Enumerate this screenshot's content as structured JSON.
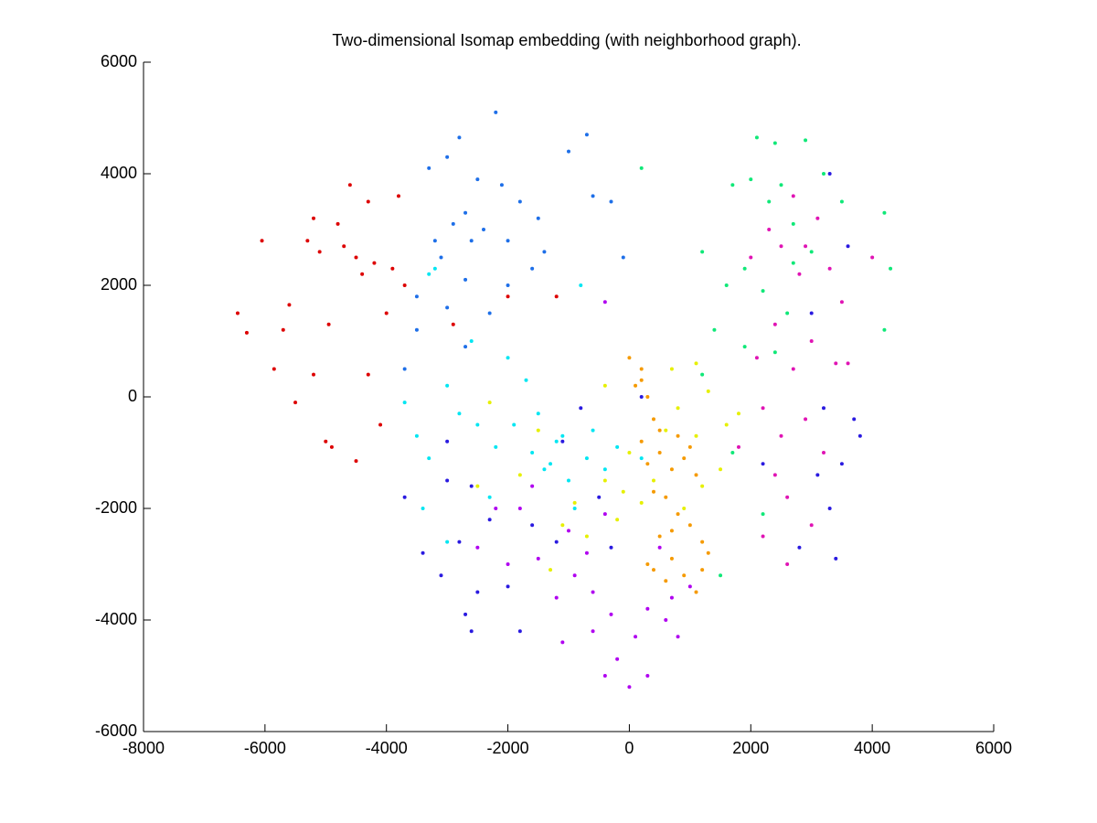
{
  "chart_data": {
    "type": "scatter",
    "title": "Two-dimensional Isomap embedding (with neighborhood graph).",
    "xlim": [
      -8000,
      6000
    ],
    "xticks": [
      -8000,
      -6000,
      -4000,
      -2000,
      0,
      2000,
      4000,
      6000
    ],
    "ylim": [
      -6000,
      6000
    ],
    "yticks": [
      -6000,
      -4000,
      -2000,
      0,
      2000,
      4000,
      6000
    ],
    "series": [
      {
        "color": "#dd0000",
        "x": [
          -6450,
          -6300,
          -6050,
          -5850,
          -5700,
          -5600,
          -5500,
          -5300,
          -5200,
          -5100,
          -5000,
          -4900,
          -4950,
          -4800,
          -4700,
          -4600,
          -4500,
          -4400,
          -4300,
          -4200,
          -4100,
          -4000,
          -3900,
          -3800,
          -4300,
          -5200,
          -4500,
          -3700,
          -2000,
          -2900,
          -1200
        ],
        "y": [
          1500,
          1150,
          2800,
          500,
          1200,
          1650,
          -100,
          2800,
          3200,
          2600,
          -800,
          -900,
          1300,
          3100,
          2700,
          3800,
          2500,
          2200,
          3500,
          2400,
          -500,
          1500,
          2300,
          3600,
          400,
          400,
          -1150,
          2000,
          1800,
          1300,
          1800
        ]
      },
      {
        "color": "#1e6fe8",
        "x": [
          -3300,
          -3000,
          -2800,
          -2200,
          -2500,
          -2700,
          -2900,
          -2600,
          -3100,
          -3500,
          -2400,
          -2000,
          -1800,
          -1500,
          -1000,
          -700,
          -600,
          -300,
          -1400,
          -2000,
          -3500,
          -3000,
          -3700,
          -2700,
          -2300,
          -1600,
          -100,
          -2100,
          -2700,
          -3200
        ],
        "y": [
          4100,
          4300,
          4650,
          5100,
          3900,
          3300,
          3100,
          2800,
          2500,
          1800,
          3000,
          2800,
          3500,
          3200,
          4400,
          4700,
          3600,
          3500,
          2600,
          2000,
          1200,
          1600,
          500,
          2100,
          1500,
          2300,
          2500,
          3800,
          900,
          2800
        ]
      },
      {
        "color": "#00e6f2",
        "x": [
          -3300,
          -3200,
          -3700,
          -3500,
          -3300,
          -3000,
          -2800,
          -2500,
          -2200,
          -1900,
          -1600,
          -1300,
          -1000,
          -700,
          -400,
          -200,
          -1700,
          -1500,
          -1200,
          -2600,
          -2000,
          -1100,
          -900,
          -800,
          -2300,
          -3400,
          -1400,
          -600,
          200,
          -3000
        ],
        "y": [
          2200,
          2300,
          -100,
          -700,
          -1100,
          200,
          -300,
          -500,
          -900,
          -500,
          -1000,
          -1200,
          -1500,
          -1100,
          -1300,
          -900,
          300,
          -300,
          -800,
          1000,
          700,
          -700,
          -2000,
          2000,
          -1800,
          -2000,
          -1300,
          -600,
          -1100,
          -2600
        ]
      },
      {
        "color": "#2a1ae0",
        "x": [
          -3700,
          -3400,
          -3100,
          -2800,
          -2700,
          -2500,
          -2600,
          -1800,
          -2000,
          -1600,
          -1200,
          -3000,
          -2600,
          -2300,
          -1100,
          -800,
          -500,
          3100,
          3300,
          3500,
          3700,
          3200,
          2800,
          3400,
          3000,
          3600,
          3300,
          2200,
          -3000,
          3800,
          -300,
          200
        ],
        "y": [
          -1800,
          -2800,
          -3200,
          -2600,
          -3900,
          -3500,
          -4200,
          -4200,
          -3400,
          -2300,
          -2600,
          -800,
          -1600,
          -2200,
          -800,
          -200,
          -1800,
          -1400,
          -2000,
          -1200,
          -400,
          -200,
          -2700,
          -2900,
          1500,
          2700,
          4000,
          -1200,
          -1500,
          -700,
          -2700,
          0
        ]
      },
      {
        "color": "#e014b4",
        "x": [
          2300,
          2500,
          2800,
          3100,
          2400,
          2700,
          3000,
          3400,
          2200,
          2500,
          2900,
          3200,
          2600,
          3000,
          3500,
          2000,
          2900,
          2700,
          2200,
          1800,
          3300,
          2100,
          4000,
          3600,
          2600,
          2400
        ],
        "y": [
          3000,
          2700,
          2200,
          3200,
          1300,
          500,
          1000,
          600,
          -200,
          -700,
          -400,
          -1000,
          -1800,
          -2300,
          1700,
          2500,
          2700,
          3600,
          -2500,
          -900,
          2300,
          700,
          2500,
          600,
          -3000,
          -1400
        ]
      },
      {
        "color": "#10e878",
        "x": [
          2100,
          2400,
          2900,
          1700,
          2000,
          2300,
          2700,
          3000,
          1900,
          2200,
          2600,
          1600,
          1400,
          1900,
          2400,
          3200,
          4200,
          4300,
          4200,
          1200,
          2500,
          1700,
          1500,
          2200,
          200,
          3500,
          2700,
          1200
        ],
        "y": [
          4650,
          4550,
          4600,
          3800,
          3900,
          3500,
          3100,
          2600,
          2300,
          1900,
          1500,
          2000,
          1200,
          900,
          800,
          4000,
          3300,
          2300,
          1200,
          2600,
          3800,
          -1000,
          -3200,
          -2100,
          4100,
          3500,
          2400,
          400
        ]
      },
      {
        "color": "#b000f0",
        "x": [
          -400,
          -200,
          0,
          100,
          300,
          -300,
          -600,
          -900,
          600,
          700,
          1000,
          -1100,
          -1500,
          -2200,
          -2500,
          -2000,
          -400,
          -700,
          -1200,
          -400,
          -1800,
          -600,
          300,
          800,
          -1600,
          500,
          -1000
        ],
        "y": [
          -5000,
          -4700,
          -5200,
          -4300,
          -3800,
          -3900,
          -3500,
          -3200,
          -4000,
          -3600,
          -3400,
          -4400,
          -2900,
          -2000,
          -2700,
          -3000,
          -2100,
          -2800,
          -3600,
          1700,
          -2000,
          -4200,
          -5000,
          -4300,
          -1600,
          -2700,
          -2400
        ]
      },
      {
        "color": "#e6f000",
        "x": [
          -1100,
          -700,
          -1300,
          -900,
          -400,
          -200,
          0,
          200,
          400,
          600,
          800,
          1100,
          1300,
          1600,
          900,
          1500,
          700,
          1100,
          -1800,
          -2500,
          -1500,
          -100,
          1800,
          -400,
          1200,
          -2300
        ],
        "y": [
          -2300,
          -2500,
          -3100,
          -1900,
          -1500,
          -2200,
          -1000,
          -1900,
          -1500,
          -600,
          -200,
          -700,
          100,
          -500,
          -2000,
          -1300,
          500,
          600,
          -1400,
          -1600,
          -600,
          -1700,
          -300,
          200,
          -1600,
          -100
        ]
      },
      {
        "color": "#f59a00",
        "x": [
          0,
          200,
          100,
          300,
          400,
          200,
          500,
          700,
          900,
          1100,
          600,
          800,
          1000,
          1200,
          500,
          700,
          300,
          900,
          1300,
          1100,
          600,
          400,
          400,
          800,
          1000,
          300,
          200,
          700,
          1200,
          500
        ],
        "y": [
          700,
          500,
          200,
          0,
          -400,
          -800,
          -1000,
          -1300,
          -1100,
          -1400,
          -1800,
          -2100,
          -2300,
          -2600,
          -2500,
          -2900,
          -3000,
          -3200,
          -2800,
          -3500,
          -3300,
          -3100,
          -1700,
          -700,
          -900,
          -1200,
          300,
          -2400,
          -3100,
          -600
        ]
      }
    ]
  }
}
